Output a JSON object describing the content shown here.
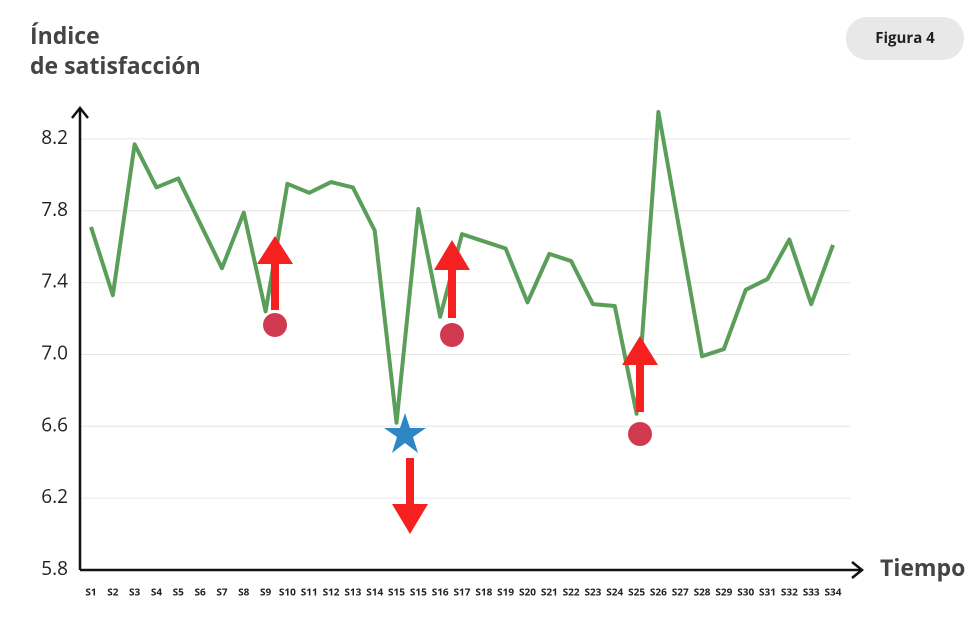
{
  "chart_data": {
    "type": "line",
    "badge": "Figura 4",
    "y_label": [
      "Índice",
      "de satisfacción"
    ],
    "x_label": "Tiempo",
    "categories": [
      "S1",
      "S2",
      "S3",
      "S4",
      "S5",
      "S6",
      "S7",
      "S8",
      "S9",
      "S10",
      "S11",
      "S12",
      "S13",
      "S14",
      "S15",
      "S15",
      "S16",
      "S17",
      "S18",
      "S19",
      "S20",
      "S21",
      "S22",
      "S23",
      "S24",
      "S25",
      "S26",
      "S27",
      "S28",
      "S29",
      "S30",
      "S31",
      "S32",
      "S33",
      "S34"
    ],
    "series": [
      {
        "name": "Índice de satisfacción",
        "color": "#5a9e5a",
        "values": [
          7.71,
          7.33,
          8.17,
          7.93,
          7.98,
          7.73,
          7.48,
          7.79,
          7.24,
          7.95,
          7.9,
          7.96,
          7.93,
          7.69,
          6.62,
          7.81,
          7.21,
          7.67,
          7.63,
          7.59,
          7.29,
          7.56,
          7.52,
          7.28,
          7.27,
          6.67,
          8.35,
          7.67,
          6.99,
          7.03,
          7.36,
          7.42,
          7.64,
          7.28,
          7.61
        ]
      }
    ],
    "ylim": [
      5.8,
      8.4
    ],
    "yticks": [
      {
        "value": 5.8,
        "label": "5.8"
      },
      {
        "value": 6.2,
        "label": "6.2"
      },
      {
        "value": 6.6,
        "label": "6.6"
      },
      {
        "value": 7.0,
        "label": "7.0"
      },
      {
        "value": 7.4,
        "label": "7.4"
      },
      {
        "value": 7.8,
        "label": "7.8"
      },
      {
        "value": 8.2,
        "label": "8.2"
      }
    ],
    "grid": true
  }
}
